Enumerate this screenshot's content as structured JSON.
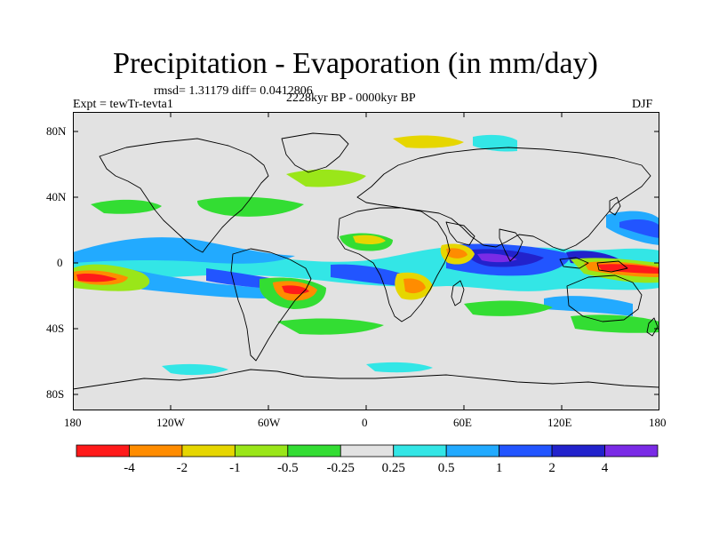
{
  "title": "Precipitation - Evaporation (in mm/day)",
  "stats": "rmsd= 1.31179 diff= 0.0412806",
  "experiment": "Expt = tewTr-tevta1",
  "period": "2228kyr BP - 0000kyr BP",
  "season": "DJF",
  "lat_labels": [
    "80N",
    "40N",
    "0",
    "40S",
    "80S"
  ],
  "lon_labels": [
    "180",
    "120W",
    "60W",
    "0",
    "60E",
    "120E",
    "180"
  ],
  "colorbar": {
    "labels": [
      "-4",
      "-2",
      "-1",
      "-0.5",
      "-0.25",
      "0.25",
      "0.5",
      "1",
      "2",
      "4"
    ],
    "colors": [
      "#ff1a1a",
      "#ff8c00",
      "#e6d600",
      "#9ae619",
      "#33dd33",
      "#e2e2e2",
      "#33e6e6",
      "#22aaff",
      "#2255ff",
      "#2222cc",
      "#7a2be6"
    ]
  }
}
